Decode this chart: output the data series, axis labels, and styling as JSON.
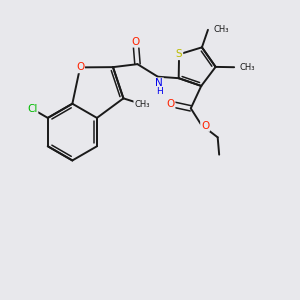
{
  "background_color": "#e8e8ec",
  "bond_color": "#1a1a1a",
  "atom_colors": {
    "Cl": "#00bb00",
    "O": "#ff2200",
    "N": "#0000ee",
    "S": "#bbbb00",
    "H": "#0000ee"
  },
  "figsize": [
    3.0,
    3.0
  ],
  "dpi": 100,
  "xlim": [
    0,
    10
  ],
  "ylim": [
    0,
    10
  ]
}
